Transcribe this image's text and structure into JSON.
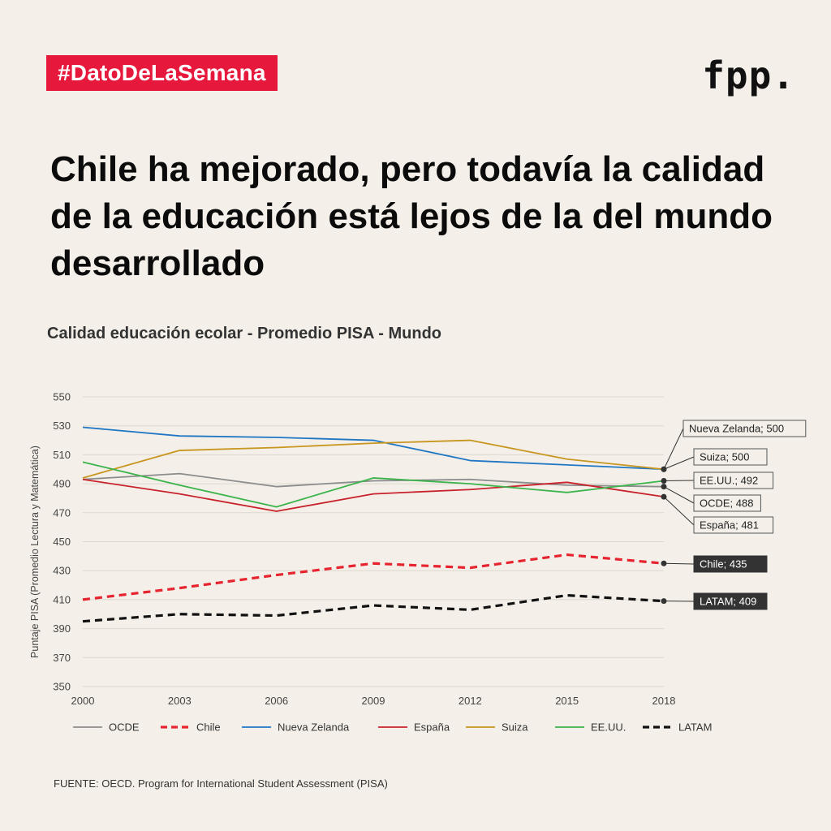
{
  "header": {
    "hashtag": "#DatoDeLaSemana",
    "logo": "fpp.",
    "headline": "Chile ha mejorado, pero todavía la calidad de la educación está lejos de la del mundo desarrollado"
  },
  "chart_data": {
    "type": "line",
    "title": "Calidad educación ecolar - Promedio PISA - Mundo",
    "xlabel": "",
    "ylabel": "Puntaje PISA (Promedio Lectura y Matemática)",
    "x": [
      "2000",
      "2003",
      "2006",
      "2009",
      "2012",
      "2015",
      "2018"
    ],
    "ylim": [
      350,
      550
    ],
    "yticks": [
      "550",
      "530",
      "510",
      "490",
      "470",
      "450",
      "430",
      "410",
      "390",
      "370",
      "350"
    ],
    "grid": true,
    "legend_position": "bottom",
    "series": [
      {
        "name": "OCDE",
        "color": "#8c8c8c",
        "dashed": false,
        "values": [
          493,
          497,
          488,
          492,
          493,
          489,
          488
        ]
      },
      {
        "name": "Chile",
        "color": "#e6232e",
        "dashed": true,
        "values": [
          410,
          418,
          427,
          435,
          432,
          441,
          435
        ]
      },
      {
        "name": "Nueva Zelanda",
        "color": "#1f77c4",
        "dashed": false,
        "values": [
          529,
          523,
          522,
          520,
          506,
          503,
          500
        ]
      },
      {
        "name": "España",
        "color": "#c8232c",
        "dashed": false,
        "values": [
          493,
          483,
          471,
          483,
          486,
          491,
          481
        ]
      },
      {
        "name": "Suiza",
        "color": "#c8961e",
        "dashed": false,
        "values": [
          494,
          513,
          515,
          518,
          520,
          507,
          500
        ]
      },
      {
        "name": "EE.UU.",
        "color": "#3cb44b",
        "dashed": false,
        "values": [
          505,
          489,
          474,
          494,
          490,
          484,
          492
        ]
      },
      {
        "name": "LATAM",
        "color": "#111111",
        "dashed": true,
        "values": [
          395,
          400,
          399,
          406,
          403,
          413,
          409
        ]
      }
    ],
    "annotations": [
      {
        "text": "Nueva Zelanda; 500",
        "series": "Nueva Zelanda",
        "dark": false
      },
      {
        "text": "Suiza; 500",
        "series": "Suiza",
        "dark": false
      },
      {
        "text": "EE.UU.; 492",
        "series": "EE.UU.",
        "dark": false
      },
      {
        "text": "OCDE; 488",
        "series": "OCDE",
        "dark": false
      },
      {
        "text": "España; 481",
        "series": "España",
        "dark": false
      },
      {
        "text": "Chile; 435",
        "series": "Chile",
        "dark": true
      },
      {
        "text": "LATAM; 409",
        "series": "LATAM",
        "dark": true
      }
    ]
  },
  "footer": {
    "source": "FUENTE: OECD. Program for International Student Assessment (PISA)"
  }
}
